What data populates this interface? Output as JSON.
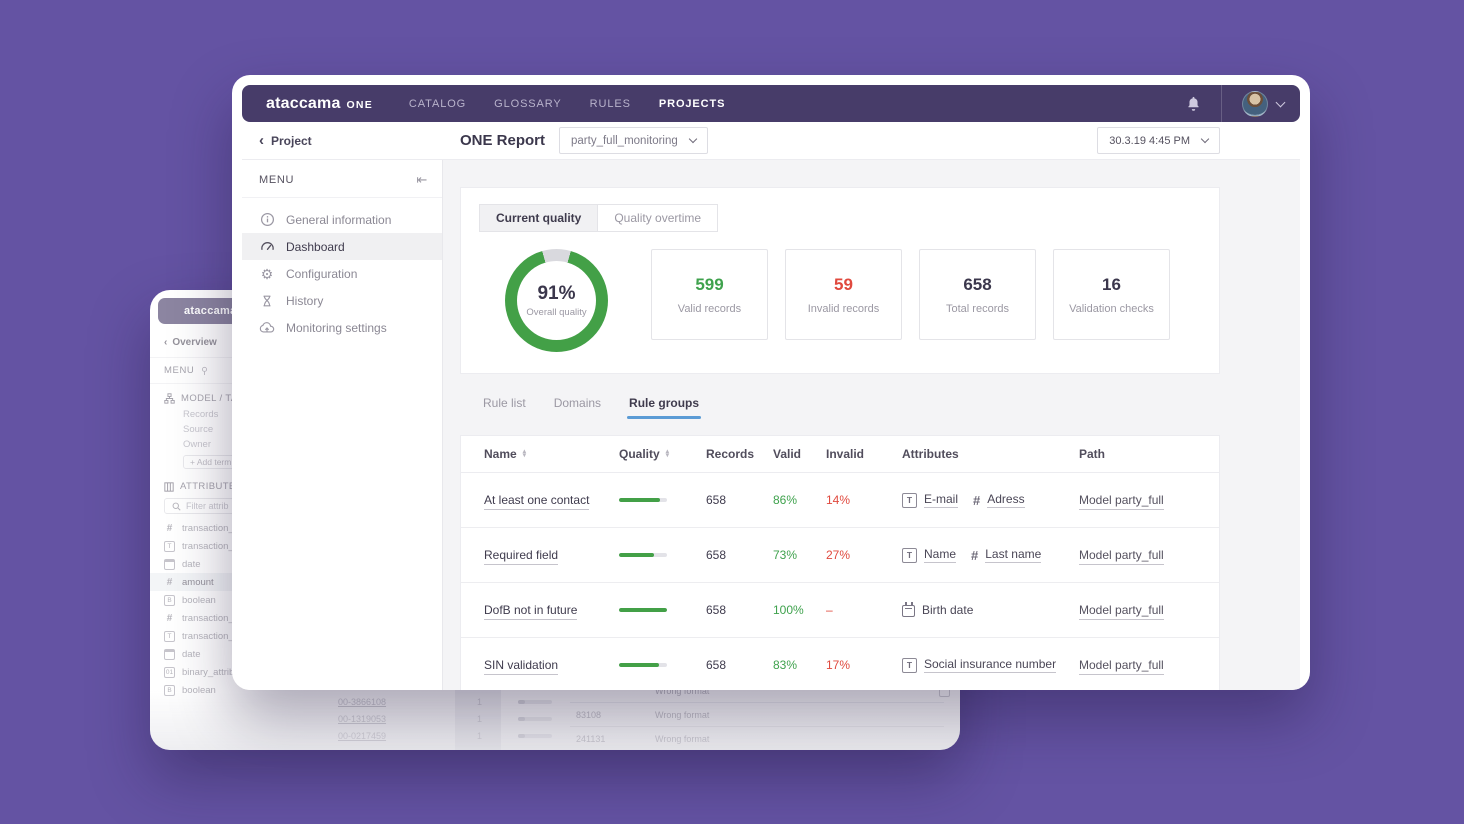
{
  "colors": {
    "page_background": "#6453a3",
    "navbar_purple": "#473c69",
    "accent_green": "#43a047",
    "valid_green": "#3fa24d",
    "alert_red": "#e0493e",
    "tab_underline_blue": "#5b9bd5"
  },
  "icons": {
    "logo": "ataccama-logo",
    "bell": "bell-icon",
    "avatar": "user-avatar",
    "collapse": "collapse-sidebar-icon",
    "sort": "sort-arrows-icon",
    "search": "search-icon",
    "text_attr": "boxed-T",
    "number_attr": "hash",
    "date_attr": "calendar",
    "boolean_attr": "boxed-B",
    "binary_attr": "boxed-01"
  },
  "back_window": {
    "logo": "ataccama",
    "back_link": "Overview",
    "menu_label": "MENU",
    "model_section": "MODEL / TA",
    "fields": [
      "Records",
      "Source",
      "Owner"
    ],
    "add_term_label": "+ Add term",
    "attributes_label": "ATTRIBUTES",
    "filter_placeholder": "Filter attrib",
    "attributes": [
      {
        "icon": "hash",
        "label": "transaction_"
      },
      {
        "icon": "text",
        "label": "transaction_"
      },
      {
        "icon": "date",
        "label": "date"
      },
      {
        "icon": "hash",
        "label": "amount",
        "selected": true
      },
      {
        "icon": "bool",
        "label": "boolean"
      },
      {
        "icon": "hash",
        "label": "transaction_"
      },
      {
        "icon": "text",
        "label": "transaction_"
      },
      {
        "icon": "date",
        "label": "date"
      },
      {
        "icon": "binary",
        "label": "binary_attrib"
      },
      {
        "icon": "bool",
        "label": "boolean"
      }
    ],
    "bottom_table": {
      "rows": [
        {
          "id": "00-3866108",
          "count": "1"
        },
        {
          "id": "00-1319053",
          "count": "1"
        },
        {
          "id": "00-0217459",
          "count": "1"
        }
      ],
      "details": [
        {
          "value": "",
          "status": "Wrong format"
        },
        {
          "value": "83108",
          "status": "Wrong format"
        },
        {
          "value": "241131",
          "status": "Wrong format"
        }
      ]
    }
  },
  "navbar": {
    "logo_main": "ataccama",
    "logo_suffix": "ONE",
    "items": [
      {
        "label": "CATALOG"
      },
      {
        "label": "GLOSSARY"
      },
      {
        "label": "RULES"
      },
      {
        "label": "PROJECTS",
        "active": true
      }
    ]
  },
  "header": {
    "back_link": "Project",
    "title": "ONE Report",
    "report_select": "party_full_monitoring",
    "date_select": "30.3.19 4:45 PM"
  },
  "sidebar": {
    "menu_label": "MENU",
    "items": [
      {
        "icon": "info",
        "label": "General information"
      },
      {
        "icon": "gauge",
        "label": "Dashboard",
        "active": true
      },
      {
        "icon": "gear",
        "label": "Configuration"
      },
      {
        "icon": "hourglass",
        "label": "History"
      },
      {
        "icon": "cloud",
        "label": "Monitoring settings"
      }
    ]
  },
  "quality_tabs": [
    {
      "label": "Current quality",
      "active": true
    },
    {
      "label": "Quality overtime"
    }
  ],
  "stats": {
    "donut": {
      "percent": 91,
      "label": "91%",
      "sublabel": "Overall quality"
    },
    "cards": [
      {
        "value": "599",
        "label": "Valid records",
        "color": "green"
      },
      {
        "value": "59",
        "label": "Invalid records",
        "color": "red"
      },
      {
        "value": "658",
        "label": "Total records",
        "color": "dark"
      },
      {
        "value": "16",
        "label": "Validation checks",
        "color": "dark"
      }
    ]
  },
  "rules_tabs": [
    {
      "label": "Rule list"
    },
    {
      "label": "Domains"
    },
    {
      "label": "Rule groups",
      "active": true
    }
  ],
  "rules_table": {
    "columns": [
      {
        "label": "Name",
        "sortable": true
      },
      {
        "label": "Quality",
        "sortable": true
      },
      {
        "label": "Records"
      },
      {
        "label": "Valid"
      },
      {
        "label": "Invalid"
      },
      {
        "label": "Attributes"
      },
      {
        "label": "Path"
      }
    ],
    "rows": [
      {
        "name": "At least one contact",
        "quality": 86,
        "records": "658",
        "valid": "86%",
        "invalid": "14%",
        "attributes": [
          {
            "icon": "text",
            "label": "E-mail",
            "underline": true
          },
          {
            "icon": "hash",
            "label": "Adress",
            "underline": true
          }
        ],
        "path": "Model party_full"
      },
      {
        "name": "Required field",
        "quality": 73,
        "records": "658",
        "valid": "73%",
        "invalid": "27%",
        "attributes": [
          {
            "icon": "text",
            "label": "Name",
            "underline": true
          },
          {
            "icon": "hash",
            "label": "Last name",
            "underline": true
          }
        ],
        "path": "Model party_full"
      },
      {
        "name": "DofB not in future",
        "quality": 100,
        "records": "658",
        "valid": "100%",
        "invalid": "–",
        "attributes": [
          {
            "icon": "date",
            "label": "Birth date",
            "underline": false
          }
        ],
        "path": "Model party_full"
      },
      {
        "name": "SIN validation",
        "quality": 83,
        "records": "658",
        "valid": "83%",
        "invalid": "17%",
        "attributes": [
          {
            "icon": "text",
            "label": "Social insurance number",
            "underline": true
          }
        ],
        "path": "Model party_full"
      }
    ]
  }
}
